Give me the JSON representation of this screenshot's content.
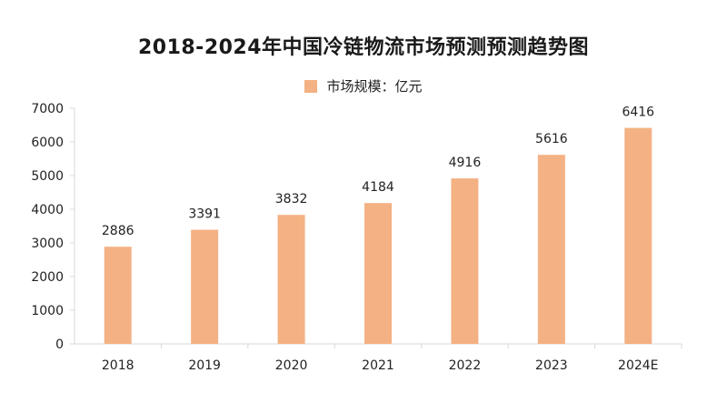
{
  "chart_data": {
    "type": "bar",
    "title": "2018-2024年中国冷链物流市场预测预测趋势图",
    "legend": [
      "市场规模：亿元"
    ],
    "legend_position": "top",
    "categories": [
      "2018",
      "2019",
      "2020",
      "2021",
      "2022",
      "2023",
      "2024E"
    ],
    "series": [
      {
        "name": "市场规模：亿元",
        "values": [
          2886,
          3391,
          3832,
          4184,
          4916,
          5616,
          6416
        ]
      }
    ],
    "data_labels": [
      "2886",
      "3391",
      "3832",
      "4184",
      "4916",
      "5616",
      "6416"
    ],
    "xlabel": "",
    "ylabel": "",
    "ylim": [
      0,
      7000
    ],
    "yticks": [
      0,
      1000,
      2000,
      3000,
      4000,
      5000,
      6000,
      7000
    ],
    "grid": false,
    "bar_color": "#f4b183"
  }
}
